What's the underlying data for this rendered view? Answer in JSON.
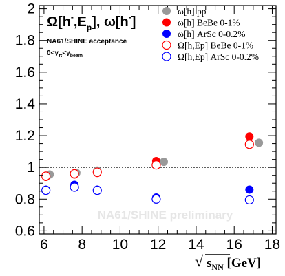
{
  "chart_data": {
    "type": "scatter",
    "title": "Ω[h-,Ep], ω[h-]",
    "title_parts": {
      "omega_big": "Ω[h",
      "minus1": "-",
      "comma_e": ",E",
      "p_sub": "p",
      "rest": "], ω[h",
      "minus2": "-",
      "close": "]"
    },
    "subtitle": "NA61/SHINE acceptance",
    "rapidity_cut": {
      "lead": "0<y",
      "sub1": "π",
      "mid": "<y",
      "sub2": "beam"
    },
    "watermark": "NA61/SHINE preliminary",
    "xlabel": {
      "sqrt": "√",
      "s": "s",
      "sub": "NN",
      "unit": " [GeV]"
    },
    "xlim": [
      5.75,
      18.2
    ],
    "ylim": [
      0.58,
      2.02
    ],
    "xticks": [
      6,
      8,
      10,
      12,
      14,
      16,
      18
    ],
    "yticks": [
      0.6,
      0.8,
      1.0,
      1.2,
      1.4,
      1.6,
      1.8,
      2.0
    ],
    "ytick_labels": [
      "0.6",
      "0.8",
      "1",
      "1.2",
      "1.4",
      "1.6",
      "1.8",
      "2"
    ],
    "reference_line": 1.0,
    "series": [
      {
        "name": "ω[h] pp",
        "legend_label": "ω[h] pp",
        "color": "#999999",
        "marker": "filled",
        "x": [
          6.3,
          7.7,
          8.8,
          12.3,
          17.3
        ],
        "y": [
          0.955,
          0.965,
          0.98,
          1.035,
          1.155
        ]
      },
      {
        "name": "ω[h] BeBe 0-1%",
        "legend_label": "ω[h] BeBe 0-1%",
        "color": "#ff0000",
        "marker": "filled",
        "x": [
          6.1,
          7.6,
          8.8,
          11.9,
          16.8
        ],
        "y": [
          0.94,
          0.955,
          0.965,
          1.04,
          1.195
        ]
      },
      {
        "name": "ω[h] ArSc 0-0.2%",
        "legend_label": "ω[h] ArSc 0-0.2%",
        "color": "#0000ff",
        "marker": "filled",
        "x": [
          6.1,
          7.6,
          8.8,
          11.9,
          16.8
        ],
        "y": [
          0.86,
          0.89,
          0.86,
          0.81,
          0.86
        ]
      },
      {
        "name": "Ω[h,Ep] BeBe 0-1%",
        "legend_label": "Ω[h,Ep] BeBe 0-1%",
        "color": "#ff0000",
        "marker": "open",
        "x": [
          6.1,
          7.6,
          8.8,
          11.9,
          16.8
        ],
        "y": [
          0.945,
          0.96,
          0.97,
          1.015,
          1.145
        ]
      },
      {
        "name": "Ω[h,Ep] ArSc 0-0.2%",
        "legend_label": "Ω[h,Ep] ArSc 0-0.2%",
        "color": "#0000ff",
        "marker": "open",
        "x": [
          6.1,
          7.6,
          8.8,
          11.9,
          16.8
        ],
        "y": [
          0.855,
          0.875,
          0.855,
          0.8,
          0.795
        ]
      }
    ],
    "legend_position": "top-right"
  }
}
